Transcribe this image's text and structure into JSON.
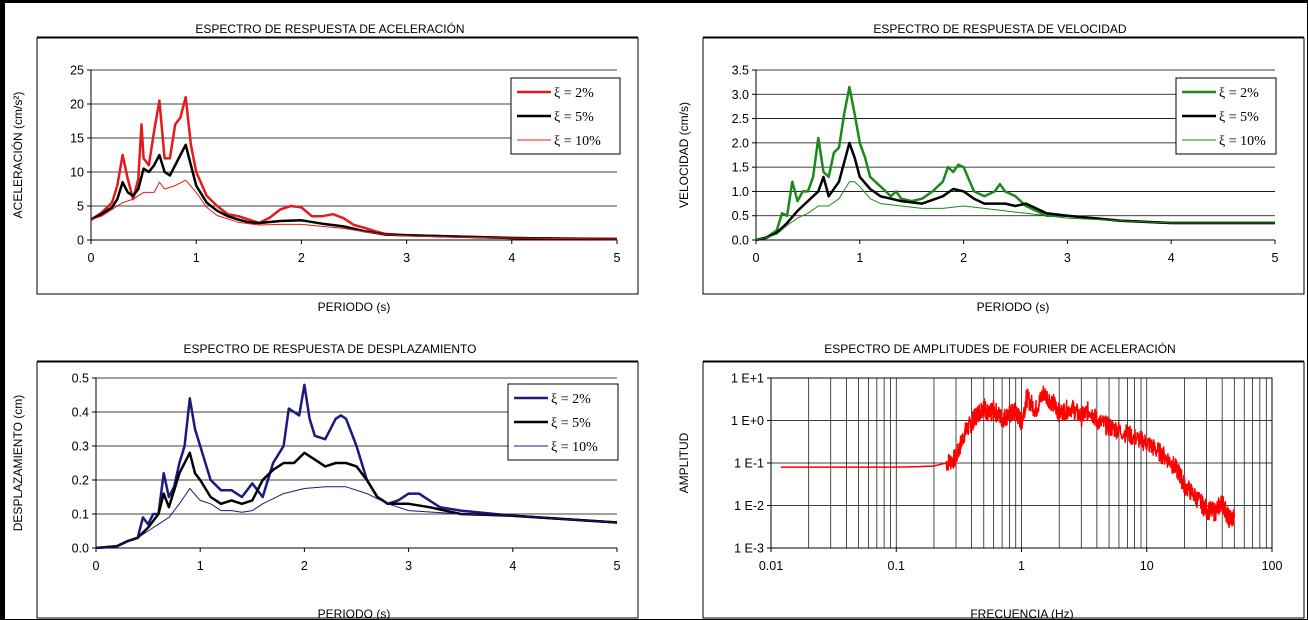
{
  "chart_data": [
    {
      "type": "line",
      "title": "ESPECTRO DE RESPUESTA DE ACELERACIÓN",
      "xlabel": "PERIODO (s)",
      "ylabel": "ACELERACIÓN (cm/s²)",
      "xlim": [
        0,
        5
      ],
      "ylim": [
        0,
        25
      ],
      "xticks": [
        "0",
        "1",
        "2",
        "3",
        "4",
        "5"
      ],
      "yticks": [
        "0",
        "5",
        "10",
        "15",
        "20",
        "25"
      ],
      "grid": "horizontal",
      "legend": "top-right",
      "series": [
        {
          "name": "ξ = 2%",
          "color": "#e41a1c",
          "width": 2.5,
          "x": [
            0,
            0.1,
            0.2,
            0.25,
            0.3,
            0.35,
            0.4,
            0.45,
            0.48,
            0.5,
            0.55,
            0.6,
            0.65,
            0.7,
            0.75,
            0.8,
            0.85,
            0.9,
            0.95,
            1.0,
            1.1,
            1.2,
            1.3,
            1.4,
            1.5,
            1.6,
            1.7,
            1.8,
            1.9,
            2.0,
            2.1,
            2.2,
            2.3,
            2.4,
            2.5,
            2.6,
            2.7,
            2.8,
            3.0,
            3.5,
            4.0,
            4.5,
            5.0
          ],
          "y": [
            3,
            4,
            5.5,
            8,
            12.5,
            9,
            6,
            9,
            17,
            12,
            11,
            16,
            20.5,
            12,
            12,
            17,
            18,
            21,
            14,
            10,
            6.5,
            5,
            3.8,
            3.5,
            3,
            2.5,
            3.3,
            4.5,
            5,
            4.8,
            3.5,
            3.5,
            3.8,
            3.2,
            2.2,
            1.8,
            1.3,
            0.9,
            0.7,
            0.5,
            0.3,
            0.2,
            0.15
          ]
        },
        {
          "name": "ξ = 5%",
          "color": "#000000",
          "width": 2.5,
          "x": [
            0,
            0.1,
            0.2,
            0.25,
            0.3,
            0.35,
            0.4,
            0.45,
            0.5,
            0.55,
            0.6,
            0.65,
            0.7,
            0.75,
            0.8,
            0.85,
            0.9,
            0.95,
            1.0,
            1.1,
            1.2,
            1.3,
            1.4,
            1.5,
            1.6,
            1.8,
            2.0,
            2.2,
            2.4,
            2.6,
            2.8,
            3.0,
            3.5,
            4.0,
            4.5,
            5.0
          ],
          "y": [
            3,
            3.8,
            4.8,
            6,
            8.5,
            7,
            6.5,
            7.5,
            10.5,
            10,
            11,
            12.5,
            10,
            9.5,
            11,
            12.5,
            14,
            11,
            8,
            5.5,
            4.3,
            3.5,
            3,
            2.6,
            2.5,
            2.8,
            2.9,
            2.4,
            2,
            1.3,
            0.8,
            0.7,
            0.5,
            0.3,
            0.2,
            0.15
          ]
        },
        {
          "name": "ξ = 10%",
          "color": "#e41a1c",
          "width": 1,
          "x": [
            0,
            0.1,
            0.2,
            0.3,
            0.4,
            0.5,
            0.6,
            0.65,
            0.7,
            0.8,
            0.9,
            1.0,
            1.1,
            1.2,
            1.4,
            1.6,
            1.8,
            2.0,
            2.2,
            2.4,
            2.6,
            2.8,
            3.0,
            3.5,
            4.0,
            4.5,
            5.0
          ],
          "y": [
            3,
            3.5,
            4.5,
            5.5,
            6,
            7,
            7,
            8.5,
            7.5,
            8,
            8.8,
            7,
            4.8,
            3.6,
            2.6,
            2.2,
            2.3,
            2.3,
            2,
            1.7,
            1.2,
            0.8,
            0.6,
            0.4,
            0.3,
            0.2,
            0.15
          ]
        }
      ]
    },
    {
      "type": "line",
      "title": "ESPECTRO DE RESPUESTA DE VELOCIDAD",
      "xlabel": "PERIODO (s)",
      "ylabel": "VELOCIDAD (cm/s)",
      "xlim": [
        0,
        5
      ],
      "ylim": [
        0,
        3.5
      ],
      "xticks": [
        "0",
        "1",
        "2",
        "3",
        "4",
        "5"
      ],
      "yticks": [
        "0.0",
        "0.5",
        "1.0",
        "1.5",
        "2.0",
        "2.5",
        "3.0",
        "3.5"
      ],
      "grid": "horizontal",
      "legend": "top-right",
      "series": [
        {
          "name": "ξ = 2%",
          "color": "#1a8a1a",
          "width": 2.5,
          "x": [
            0,
            0.1,
            0.2,
            0.25,
            0.3,
            0.35,
            0.4,
            0.45,
            0.5,
            0.55,
            0.6,
            0.65,
            0.7,
            0.75,
            0.8,
            0.85,
            0.9,
            0.95,
            1.0,
            1.05,
            1.1,
            1.2,
            1.3,
            1.35,
            1.4,
            1.5,
            1.6,
            1.7,
            1.8,
            1.85,
            1.9,
            1.95,
            2.0,
            2.05,
            2.1,
            2.2,
            2.3,
            2.35,
            2.4,
            2.5,
            2.6,
            2.7,
            2.8,
            3.0,
            3.5,
            4.0,
            4.5,
            5.0
          ],
          "y": [
            0,
            0.05,
            0.2,
            0.55,
            0.5,
            1.2,
            0.8,
            1.0,
            1.0,
            1.3,
            2.1,
            1.4,
            1.3,
            1.8,
            1.9,
            2.6,
            3.15,
            2.6,
            2.0,
            1.7,
            1.3,
            1.1,
            0.9,
            1.0,
            0.85,
            0.8,
            0.85,
            1.0,
            1.2,
            1.5,
            1.4,
            1.55,
            1.5,
            1.25,
            1.0,
            0.9,
            1.0,
            1.15,
            1.0,
            0.9,
            0.7,
            0.6,
            0.5,
            0.5,
            0.4,
            0.35,
            0.35,
            0.35
          ]
        },
        {
          "name": "ξ = 5%",
          "color": "#000000",
          "width": 2.5,
          "x": [
            0,
            0.1,
            0.2,
            0.3,
            0.4,
            0.5,
            0.6,
            0.65,
            0.7,
            0.8,
            0.85,
            0.9,
            0.95,
            1.0,
            1.1,
            1.2,
            1.4,
            1.6,
            1.8,
            1.9,
            2.0,
            2.1,
            2.2,
            2.4,
            2.5,
            2.6,
            2.8,
            3.0,
            3.5,
            4.0,
            4.5,
            5.0
          ],
          "y": [
            0,
            0.05,
            0.15,
            0.35,
            0.6,
            0.8,
            1.0,
            1.3,
            0.9,
            1.2,
            1.6,
            2.0,
            1.7,
            1.3,
            1.05,
            0.9,
            0.8,
            0.75,
            0.9,
            1.05,
            1.0,
            0.85,
            0.75,
            0.75,
            0.7,
            0.75,
            0.55,
            0.5,
            0.4,
            0.35,
            0.35,
            0.35
          ]
        },
        {
          "name": "ξ = 10%",
          "color": "#1a8a1a",
          "width": 1,
          "x": [
            0,
            0.1,
            0.2,
            0.3,
            0.4,
            0.5,
            0.6,
            0.7,
            0.8,
            0.9,
            0.95,
            1.0,
            1.1,
            1.2,
            1.4,
            1.6,
            1.8,
            2.0,
            2.2,
            2.4,
            2.6,
            2.8,
            3.0,
            3.5,
            4.0,
            4.5,
            5.0
          ],
          "y": [
            0,
            0.05,
            0.12,
            0.3,
            0.45,
            0.55,
            0.7,
            0.7,
            0.85,
            1.2,
            1.2,
            1.1,
            0.85,
            0.75,
            0.7,
            0.65,
            0.65,
            0.7,
            0.65,
            0.6,
            0.55,
            0.5,
            0.45,
            0.4,
            0.35,
            0.35,
            0.35
          ]
        }
      ]
    },
    {
      "type": "line",
      "title": "ESPECTRO DE RESPUESTA DE DESPLAZAMIENTO",
      "xlabel": "PERIODO (s)",
      "ylabel": "DESPLAZAMIENTO (cm)",
      "xlim": [
        0,
        5
      ],
      "ylim": [
        0,
        0.5
      ],
      "xticks": [
        "0",
        "1",
        "2",
        "3",
        "4",
        "5"
      ],
      "yticks": [
        "0.0",
        "0.1",
        "0.2",
        "0.3",
        "0.4",
        "0.5"
      ],
      "grid": "horizontal",
      "legend": "top-right",
      "series": [
        {
          "name": "ξ = 2%",
          "color": "#1a1a80",
          "width": 2.5,
          "x": [
            0,
            0.2,
            0.3,
            0.4,
            0.45,
            0.5,
            0.55,
            0.6,
            0.65,
            0.7,
            0.75,
            0.8,
            0.85,
            0.9,
            0.95,
            1.0,
            1.1,
            1.2,
            1.3,
            1.4,
            1.5,
            1.6,
            1.7,
            1.8,
            1.85,
            1.9,
            1.95,
            2.0,
            2.05,
            2.1,
            2.2,
            2.3,
            2.35,
            2.4,
            2.5,
            2.6,
            2.7,
            2.8,
            2.9,
            3.0,
            3.1,
            3.2,
            3.3,
            3.5,
            4.0,
            4.5,
            5.0
          ],
          "y": [
            0,
            0.005,
            0.02,
            0.03,
            0.09,
            0.07,
            0.1,
            0.1,
            0.22,
            0.15,
            0.18,
            0.25,
            0.3,
            0.44,
            0.35,
            0.3,
            0.2,
            0.17,
            0.17,
            0.15,
            0.19,
            0.15,
            0.25,
            0.3,
            0.41,
            0.4,
            0.39,
            0.48,
            0.38,
            0.33,
            0.32,
            0.38,
            0.39,
            0.38,
            0.3,
            0.2,
            0.15,
            0.13,
            0.14,
            0.16,
            0.16,
            0.14,
            0.12,
            0.11,
            0.095,
            0.085,
            0.075
          ]
        },
        {
          "name": "ξ = 5%",
          "color": "#000000",
          "width": 2.5,
          "x": [
            0,
            0.2,
            0.3,
            0.4,
            0.5,
            0.6,
            0.65,
            0.7,
            0.8,
            0.9,
            0.95,
            1.0,
            1.1,
            1.2,
            1.3,
            1.4,
            1.5,
            1.6,
            1.7,
            1.8,
            1.9,
            2.0,
            2.1,
            2.2,
            2.3,
            2.4,
            2.5,
            2.6,
            2.7,
            2.8,
            3.0,
            3.2,
            3.5,
            4.0,
            4.5,
            5.0
          ],
          "y": [
            0,
            0.005,
            0.02,
            0.03,
            0.06,
            0.1,
            0.16,
            0.12,
            0.22,
            0.28,
            0.22,
            0.2,
            0.15,
            0.13,
            0.14,
            0.13,
            0.14,
            0.2,
            0.23,
            0.25,
            0.25,
            0.28,
            0.26,
            0.24,
            0.25,
            0.25,
            0.24,
            0.2,
            0.15,
            0.13,
            0.13,
            0.12,
            0.1,
            0.095,
            0.085,
            0.075
          ]
        },
        {
          "name": "ξ = 10%",
          "color": "#1a1a80",
          "width": 1,
          "x": [
            0,
            0.2,
            0.3,
            0.4,
            0.5,
            0.6,
            0.7,
            0.8,
            0.9,
            1.0,
            1.1,
            1.2,
            1.3,
            1.4,
            1.5,
            1.6,
            1.8,
            2.0,
            2.2,
            2.4,
            2.6,
            2.8,
            3.0,
            3.5,
            4.0,
            4.5,
            5.0
          ],
          "y": [
            0,
            0.005,
            0.02,
            0.03,
            0.05,
            0.07,
            0.09,
            0.13,
            0.175,
            0.14,
            0.13,
            0.11,
            0.11,
            0.105,
            0.11,
            0.13,
            0.16,
            0.175,
            0.18,
            0.18,
            0.16,
            0.13,
            0.11,
            0.1,
            0.095,
            0.085,
            0.075
          ]
        }
      ]
    },
    {
      "type": "line",
      "title": "ESPECTRO DE AMPLITUDES DE FOURIER DE ACELERACIÓN",
      "xlabel": "FRECUENCIA (Hz)",
      "ylabel": "AMPLITUD",
      "xscale": "log",
      "yscale": "log",
      "xlim": [
        0.01,
        100
      ],
      "ylim": [
        0.001,
        10
      ],
      "xticks": [
        "0.01",
        "0.1",
        "1",
        "10",
        "100"
      ],
      "yticks": [
        "1 E-3",
        "1 E-2",
        "1 E-1",
        "1 E+0",
        "1 E+1"
      ],
      "grid": "both",
      "series": [
        {
          "name": "",
          "color": "#ff0000",
          "width": 1.5,
          "x": [
            0.012,
            0.05,
            0.1,
            0.15,
            0.2,
            0.25,
            0.3,
            0.35,
            0.4,
            0.45,
            0.5,
            0.55,
            0.6,
            0.7,
            0.8,
            0.9,
            1.0,
            1.1,
            1.3,
            1.5,
            1.8,
            2.0,
            2.5,
            3.0,
            3.5,
            4.0,
            5.0,
            6.0,
            8.0,
            10.0,
            12.0,
            15.0,
            18.0,
            20.0,
            25.0,
            30.0,
            35.0,
            40.0,
            45.0,
            50.0
          ],
          "y": [
            0.08,
            0.08,
            0.08,
            0.082,
            0.085,
            0.1,
            0.13,
            0.5,
            0.9,
            1.5,
            2.2,
            1.3,
            1.8,
            1.1,
            1.4,
            1.6,
            0.9,
            3.5,
            1.8,
            4.5,
            2.5,
            1.5,
            2.0,
            1.2,
            1.8,
            1.0,
            0.7,
            0.6,
            0.4,
            0.3,
            0.2,
            0.12,
            0.06,
            0.03,
            0.015,
            0.008,
            0.007,
            0.012,
            0.005,
            0.005
          ],
          "noise": true
        }
      ]
    }
  ]
}
